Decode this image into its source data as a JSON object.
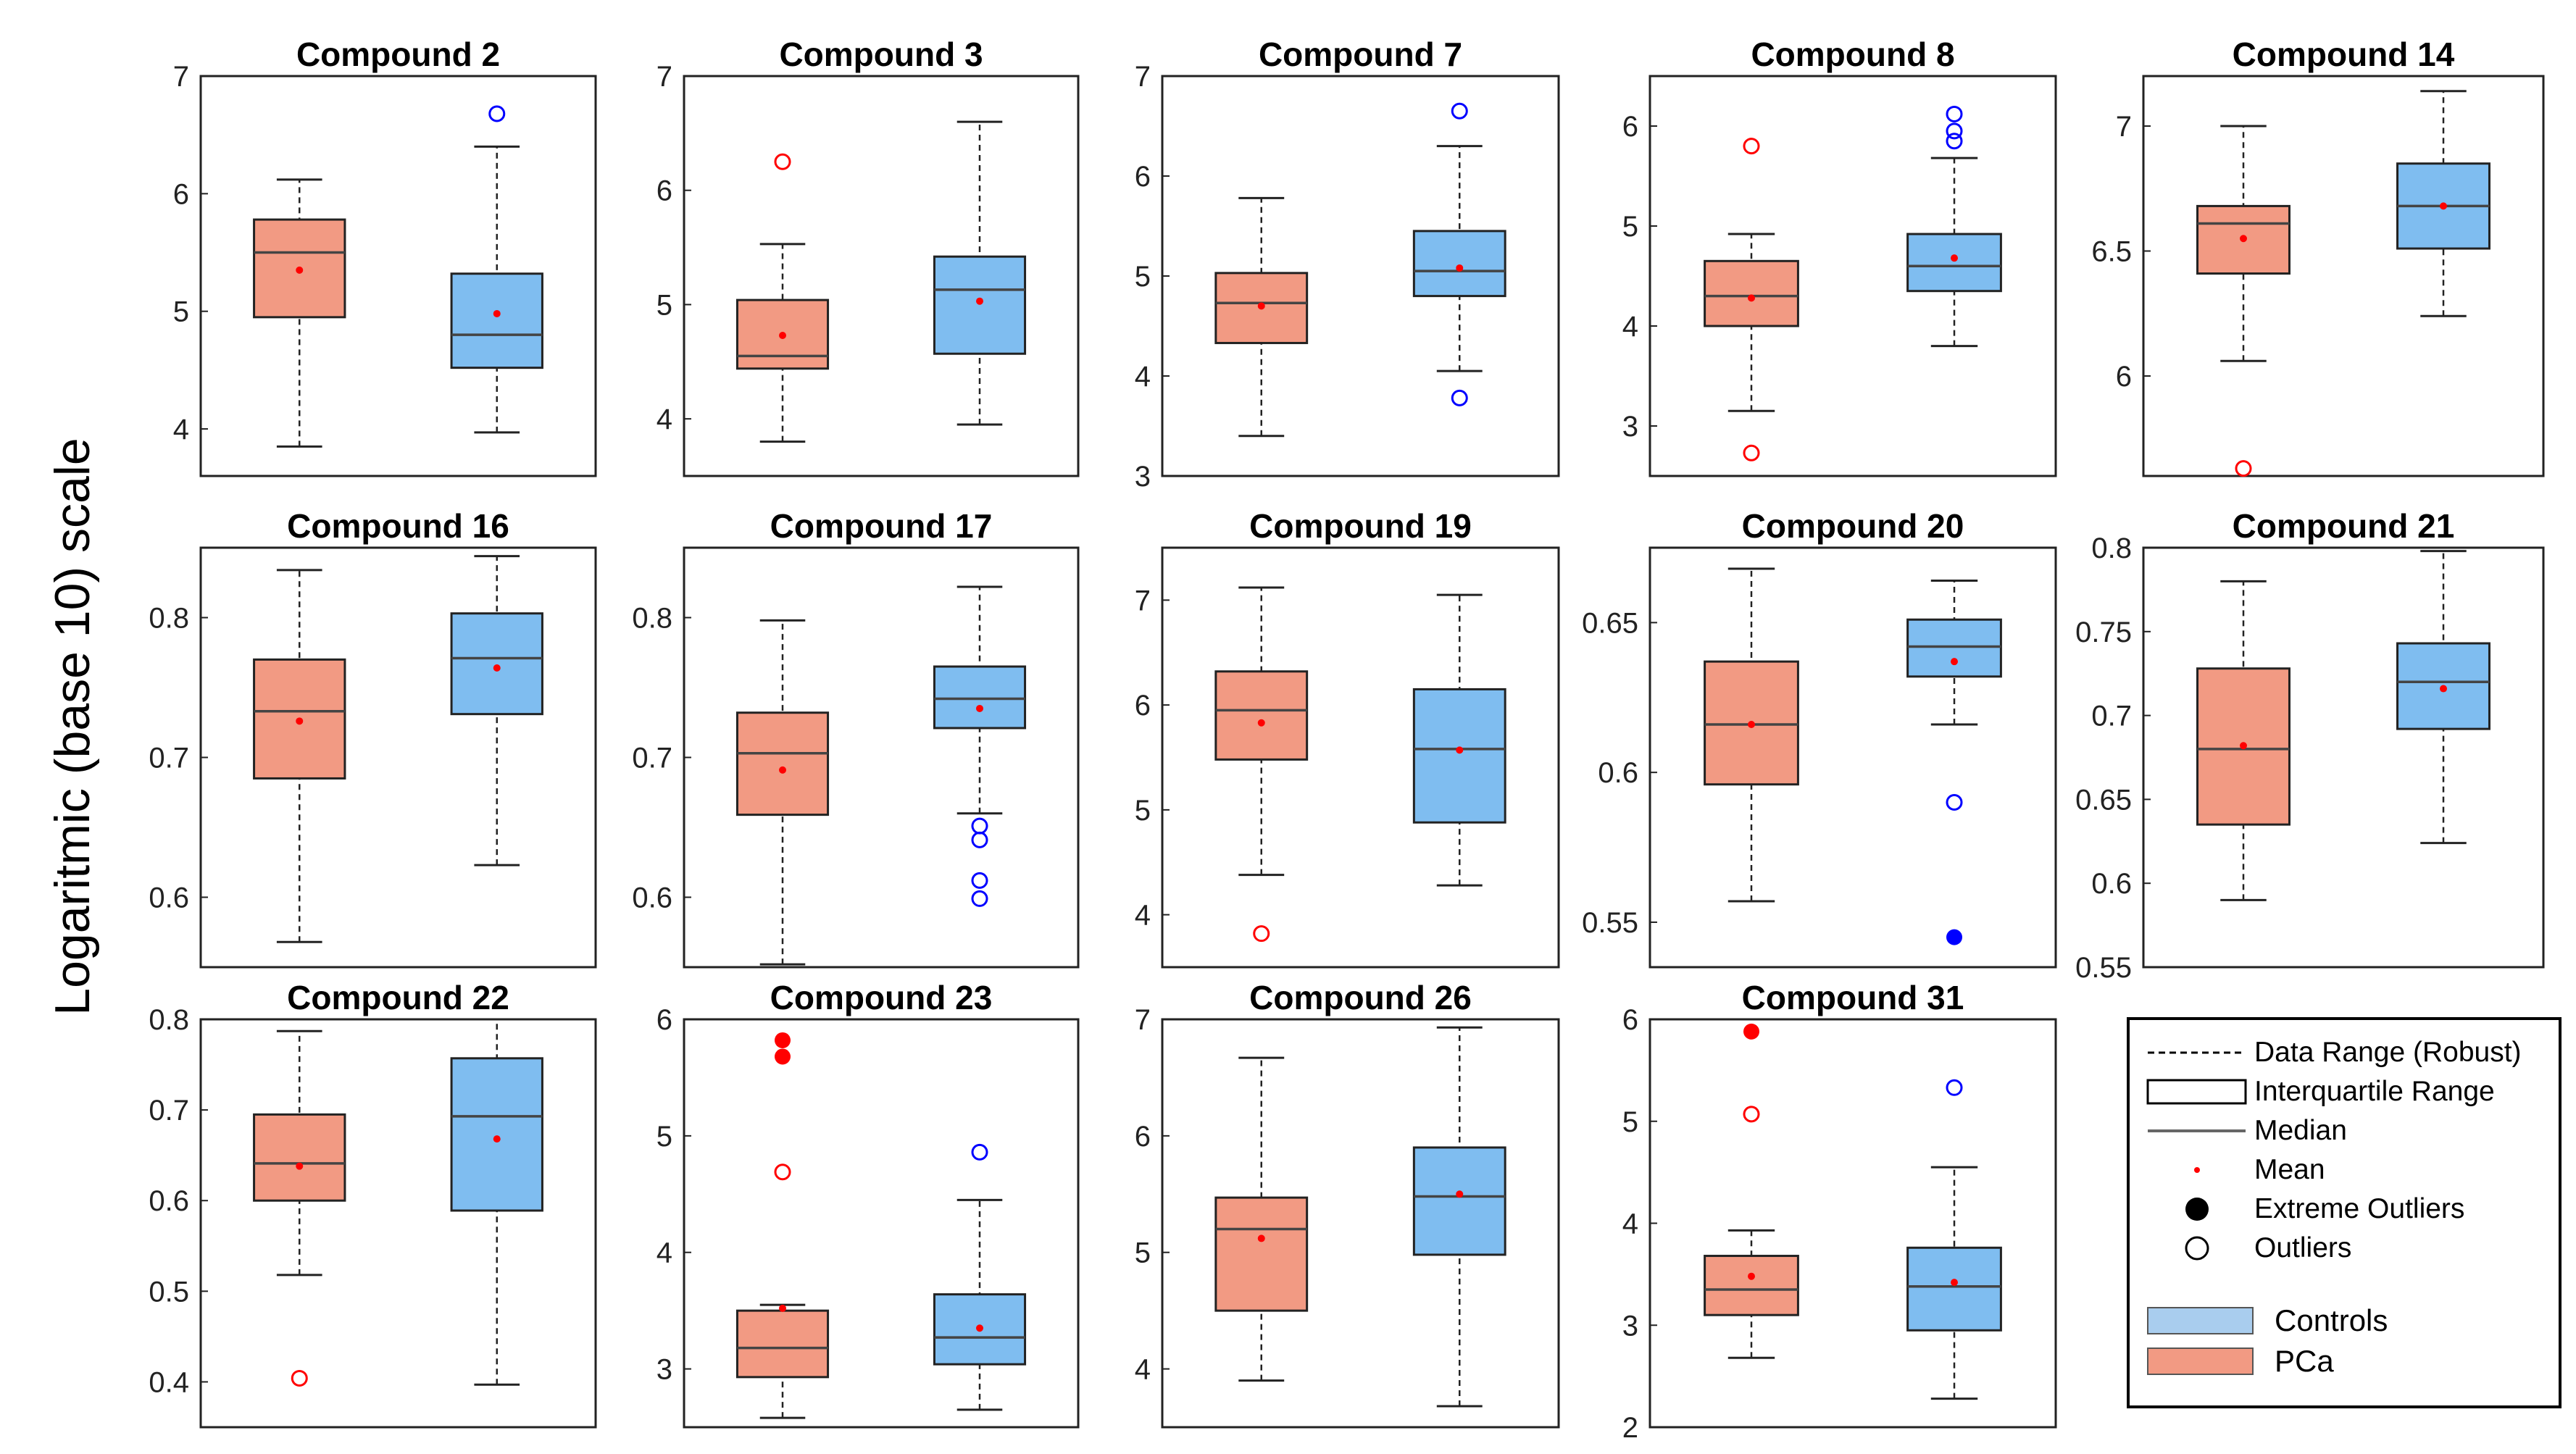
{
  "figure": {
    "ylabel": "Logaritmic (base 10) scale"
  },
  "legend": {
    "items": {
      "data_range": "Data Range (Robust)",
      "iqr": "Interquartile Range",
      "median": "Median",
      "mean": "Mean",
      "extreme_outliers": "Extreme Outliers",
      "outliers": "Outliers"
    },
    "groups": {
      "controls": "Controls",
      "pca": "PCa"
    }
  },
  "colors": {
    "pca_fill": "#f29a83",
    "controls_fill": "#7fbdf0",
    "pca_marker": "#ff0000",
    "controls_marker": "#0000ff",
    "median_line": "#444444"
  },
  "chart_data": [
    {
      "type": "box",
      "title": "Compound 2",
      "ylim": [
        3.6,
        7.0
      ],
      "yticks": [
        "4",
        "5",
        "6",
        "7"
      ],
      "ytick_values": [
        4,
        5,
        6,
        7
      ],
      "series": [
        {
          "name": "PCa",
          "whisker_low": 3.85,
          "q1": 4.95,
          "median": 5.5,
          "q3": 5.78,
          "whisker_high": 6.12,
          "mean": 5.35,
          "outliers": [],
          "extreme_outliers": []
        },
        {
          "name": "Controls",
          "whisker_low": 3.97,
          "q1": 4.52,
          "median": 4.8,
          "q3": 5.32,
          "whisker_high": 6.4,
          "mean": 4.98,
          "outliers": [
            6.68
          ],
          "extreme_outliers": []
        }
      ]
    },
    {
      "type": "box",
      "title": "Compound 3",
      "ylim": [
        3.5,
        7.0
      ],
      "yticks": [
        "4",
        "5",
        "6",
        "7"
      ],
      "ytick_values": [
        4,
        5,
        6,
        7
      ],
      "series": [
        {
          "name": "PCa",
          "whisker_low": 3.8,
          "q1": 4.44,
          "median": 4.55,
          "q3": 5.04,
          "whisker_high": 5.53,
          "mean": 4.73,
          "outliers": [
            6.25
          ],
          "extreme_outliers": []
        },
        {
          "name": "Controls",
          "whisker_low": 3.95,
          "q1": 4.57,
          "median": 5.13,
          "q3": 5.42,
          "whisker_high": 6.6,
          "mean": 5.03,
          "outliers": [],
          "extreme_outliers": []
        }
      ]
    },
    {
      "type": "box",
      "title": "Compound 7",
      "ylim": [
        3.0,
        7.0
      ],
      "yticks": [
        "3",
        "4",
        "5",
        "6",
        "7"
      ],
      "ytick_values": [
        3,
        4,
        5,
        6,
        7
      ],
      "series": [
        {
          "name": "PCa",
          "whisker_low": 3.4,
          "q1": 4.33,
          "median": 4.73,
          "q3": 5.03,
          "whisker_high": 5.78,
          "mean": 4.7,
          "outliers": [],
          "extreme_outliers": []
        },
        {
          "name": "Controls",
          "whisker_low": 4.05,
          "q1": 4.8,
          "median": 5.05,
          "q3": 5.45,
          "whisker_high": 6.3,
          "mean": 5.08,
          "outliers": [
            6.65,
            3.78
          ],
          "extreme_outliers": []
        }
      ]
    },
    {
      "type": "box",
      "title": "Compound 8",
      "ylim": [
        2.5,
        6.5
      ],
      "yticks": [
        "3",
        "4",
        "5",
        "6"
      ],
      "ytick_values": [
        3,
        4,
        5,
        6
      ],
      "series": [
        {
          "name": "PCa",
          "whisker_low": 3.15,
          "q1": 4.0,
          "median": 4.3,
          "q3": 4.65,
          "whisker_high": 4.92,
          "mean": 4.28,
          "outliers": [
            5.8,
            2.73
          ],
          "extreme_outliers": []
        },
        {
          "name": "Controls",
          "whisker_low": 3.8,
          "q1": 4.35,
          "median": 4.6,
          "q3": 4.92,
          "whisker_high": 5.68,
          "mean": 4.68,
          "outliers": [
            6.12,
            5.95,
            5.85
          ],
          "extreme_outliers": []
        }
      ]
    },
    {
      "type": "box",
      "title": "Compound 14",
      "ylim": [
        5.6,
        7.2
      ],
      "yticks": [
        "6",
        "6.5",
        "7"
      ],
      "ytick_values": [
        6,
        6.5,
        7
      ],
      "series": [
        {
          "name": "PCa",
          "whisker_low": 6.06,
          "q1": 6.41,
          "median": 6.61,
          "q3": 6.68,
          "whisker_high": 7.0,
          "mean": 6.55,
          "outliers": [
            5.63
          ],
          "extreme_outliers": []
        },
        {
          "name": "Controls",
          "whisker_low": 6.24,
          "q1": 6.51,
          "median": 6.68,
          "q3": 6.85,
          "whisker_high": 7.14,
          "mean": 6.68,
          "outliers": [],
          "extreme_outliers": []
        }
      ]
    },
    {
      "type": "box",
      "title": "Compound 16",
      "ylim": [
        0.55,
        0.85
      ],
      "yticks": [
        "0.6",
        "0.7",
        "0.8"
      ],
      "ytick_values": [
        0.6,
        0.7,
        0.8
      ],
      "series": [
        {
          "name": "PCa",
          "whisker_low": 0.568,
          "q1": 0.685,
          "median": 0.733,
          "q3": 0.77,
          "whisker_high": 0.834,
          "mean": 0.726,
          "outliers": [],
          "extreme_outliers": []
        },
        {
          "name": "Controls",
          "whisker_low": 0.623,
          "q1": 0.731,
          "median": 0.771,
          "q3": 0.803,
          "whisker_high": 0.844,
          "mean": 0.764,
          "outliers": [],
          "extreme_outliers": []
        }
      ]
    },
    {
      "type": "box",
      "title": "Compound 17",
      "ylim": [
        0.55,
        0.85
      ],
      "yticks": [
        "0.6",
        "0.7",
        "0.8"
      ],
      "ytick_values": [
        0.6,
        0.7,
        0.8
      ],
      "series": [
        {
          "name": "PCa",
          "whisker_low": 0.552,
          "q1": 0.659,
          "median": 0.703,
          "q3": 0.732,
          "whisker_high": 0.798,
          "mean": 0.691,
          "outliers": [],
          "extreme_outliers": []
        },
        {
          "name": "Controls",
          "whisker_low": 0.66,
          "q1": 0.721,
          "median": 0.742,
          "q3": 0.765,
          "whisker_high": 0.822,
          "mean": 0.735,
          "outliers": [
            0.651,
            0.641,
            0.612,
            0.599
          ],
          "extreme_outliers": []
        }
      ]
    },
    {
      "type": "box",
      "title": "Compound 19",
      "ylim": [
        3.5,
        7.5
      ],
      "yticks": [
        "4",
        "5",
        "6",
        "7"
      ],
      "ytick_values": [
        4,
        5,
        6,
        7
      ],
      "series": [
        {
          "name": "PCa",
          "whisker_low": 4.38,
          "q1": 5.48,
          "median": 5.95,
          "q3": 6.32,
          "whisker_high": 7.12,
          "mean": 5.83,
          "outliers": [
            3.82
          ],
          "extreme_outliers": []
        },
        {
          "name": "Controls",
          "whisker_low": 4.28,
          "q1": 4.88,
          "median": 5.58,
          "q3": 6.15,
          "whisker_high": 7.05,
          "mean": 5.57,
          "outliers": [],
          "extreme_outliers": []
        }
      ]
    },
    {
      "type": "box",
      "title": "Compound 20",
      "ylim": [
        0.535,
        0.675
      ],
      "yticks": [
        "0.55",
        "0.6",
        "0.65"
      ],
      "ytick_values": [
        0.55,
        0.6,
        0.65
      ],
      "series": [
        {
          "name": "PCa",
          "whisker_low": 0.557,
          "q1": 0.596,
          "median": 0.616,
          "q3": 0.637,
          "whisker_high": 0.668,
          "mean": 0.616,
          "outliers": [],
          "extreme_outliers": []
        },
        {
          "name": "Controls",
          "whisker_low": 0.616,
          "q1": 0.632,
          "median": 0.642,
          "q3": 0.651,
          "whisker_high": 0.664,
          "mean": 0.637,
          "outliers": [
            0.59
          ],
          "extreme_outliers": [
            0.545
          ]
        }
      ]
    },
    {
      "type": "box",
      "title": "Compound 21",
      "ylim": [
        0.55,
        0.8
      ],
      "yticks": [
        "0.55",
        "0.6",
        "0.65",
        "0.7",
        "0.75",
        "0.8"
      ],
      "ytick_values": [
        0.55,
        0.6,
        0.65,
        0.7,
        0.75,
        0.8
      ],
      "series": [
        {
          "name": "PCa",
          "whisker_low": 0.59,
          "q1": 0.635,
          "median": 0.68,
          "q3": 0.728,
          "whisker_high": 0.78,
          "mean": 0.682,
          "outliers": [],
          "extreme_outliers": []
        },
        {
          "name": "Controls",
          "whisker_low": 0.624,
          "q1": 0.692,
          "median": 0.72,
          "q3": 0.743,
          "whisker_high": 0.798,
          "mean": 0.716,
          "outliers": [],
          "extreme_outliers": []
        }
      ]
    },
    {
      "type": "box",
      "title": "Compound 22",
      "ylim": [
        0.35,
        0.8
      ],
      "yticks": [
        "0.4",
        "0.5",
        "0.6",
        "0.7",
        "0.8"
      ],
      "ytick_values": [
        0.4,
        0.5,
        0.6,
        0.7,
        0.8
      ],
      "series": [
        {
          "name": "PCa",
          "whisker_low": 0.518,
          "q1": 0.6,
          "median": 0.641,
          "q3": 0.695,
          "whisker_high": 0.787,
          "mean": 0.638,
          "outliers": [
            0.404
          ],
          "extreme_outliers": []
        },
        {
          "name": "Controls",
          "whisker_low": 0.397,
          "q1": 0.589,
          "median": 0.693,
          "q3": 0.757,
          "whisker_high": 0.8,
          "mean": 0.668,
          "outliers": [],
          "extreme_outliers": []
        }
      ]
    },
    {
      "type": "box",
      "title": "Compound 23",
      "ylim": [
        2.5,
        6.0
      ],
      "yticks": [
        "3",
        "4",
        "5",
        "6"
      ],
      "ytick_values": [
        3,
        4,
        5,
        6
      ],
      "series": [
        {
          "name": "PCa",
          "whisker_low": 2.58,
          "q1": 2.93,
          "median": 3.18,
          "q3": 3.5,
          "whisker_high": 3.55,
          "mean": 3.52,
          "outliers": [
            4.69
          ],
          "extreme_outliers": [
            5.82,
            5.68
          ]
        },
        {
          "name": "Controls",
          "whisker_low": 2.65,
          "q1": 3.04,
          "median": 3.27,
          "q3": 3.64,
          "whisker_high": 4.45,
          "mean": 3.35,
          "outliers": [
            4.86
          ],
          "extreme_outliers": []
        }
      ]
    },
    {
      "type": "box",
      "title": "Compound 26",
      "ylim": [
        3.5,
        7.0
      ],
      "yticks": [
        "4",
        "5",
        "6",
        "7"
      ],
      "ytick_values": [
        4,
        5,
        6,
        7
      ],
      "series": [
        {
          "name": "PCa",
          "whisker_low": 3.9,
          "q1": 4.5,
          "median": 5.2,
          "q3": 5.47,
          "whisker_high": 6.67,
          "mean": 5.12,
          "outliers": [],
          "extreme_outliers": []
        },
        {
          "name": "Controls",
          "whisker_low": 3.68,
          "q1": 4.98,
          "median": 5.48,
          "q3": 5.9,
          "whisker_high": 6.93,
          "mean": 5.5,
          "outliers": [],
          "extreme_outliers": []
        }
      ]
    },
    {
      "type": "box",
      "title": "Compound 31",
      "ylim": [
        2.0,
        6.0
      ],
      "yticks": [
        "2",
        "3",
        "4",
        "5",
        "6"
      ],
      "ytick_values": [
        2,
        3,
        4,
        5,
        6
      ],
      "series": [
        {
          "name": "PCa",
          "whisker_low": 2.68,
          "q1": 3.1,
          "median": 3.35,
          "q3": 3.68,
          "whisker_high": 3.93,
          "mean": 3.48,
          "outliers": [
            5.07
          ],
          "extreme_outliers": [
            5.88
          ]
        },
        {
          "name": "Controls",
          "whisker_low": 2.28,
          "q1": 2.95,
          "median": 3.38,
          "q3": 3.76,
          "whisker_high": 4.55,
          "mean": 3.42,
          "outliers": [
            5.33
          ],
          "extreme_outliers": []
        }
      ]
    }
  ]
}
